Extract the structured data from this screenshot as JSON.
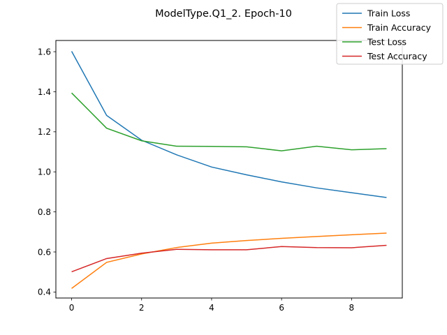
{
  "chart_data": {
    "type": "line",
    "title": "ModelType.Q1_2. Epoch-10",
    "xlabel": "",
    "ylabel": "",
    "x": [
      0,
      1,
      2,
      3,
      4,
      5,
      6,
      7,
      8,
      9
    ],
    "xlim": [
      -0.45,
      9.45
    ],
    "ylim": [
      0.37,
      1.656
    ],
    "xticks": [
      0,
      2,
      4,
      6,
      8
    ],
    "yticks": [
      0.4,
      0.6,
      0.8,
      1.0,
      1.2,
      1.4,
      1.6
    ],
    "xtick_labels": [
      "0",
      "2",
      "4",
      "6",
      "8"
    ],
    "ytick_labels": [
      "0.4",
      "0.6",
      "0.8",
      "1.0",
      "1.2",
      "1.4",
      "1.6"
    ],
    "grid": false,
    "legend_position": "top-right",
    "series": [
      {
        "name": "Train Loss",
        "color": "#1f77b4",
        "values": [
          1.602,
          1.282,
          1.158,
          1.085,
          1.024,
          0.985,
          0.95,
          0.92,
          0.896,
          0.872
        ]
      },
      {
        "name": "Train Accuracy",
        "color": "#ff7f0e",
        "values": [
          0.418,
          0.548,
          0.59,
          0.622,
          0.644,
          0.657,
          0.668,
          0.677,
          0.686,
          0.694
        ]
      },
      {
        "name": "Test Loss",
        "color": "#2ca02c",
        "values": [
          1.394,
          1.218,
          1.155,
          1.128,
          1.127,
          1.125,
          1.105,
          1.128,
          1.11,
          1.116
        ]
      },
      {
        "name": "Test Accuracy",
        "color": "#d62728",
        "values": [
          0.501,
          0.567,
          0.594,
          0.613,
          0.611,
          0.611,
          0.627,
          0.622,
          0.621,
          0.633
        ]
      }
    ]
  }
}
